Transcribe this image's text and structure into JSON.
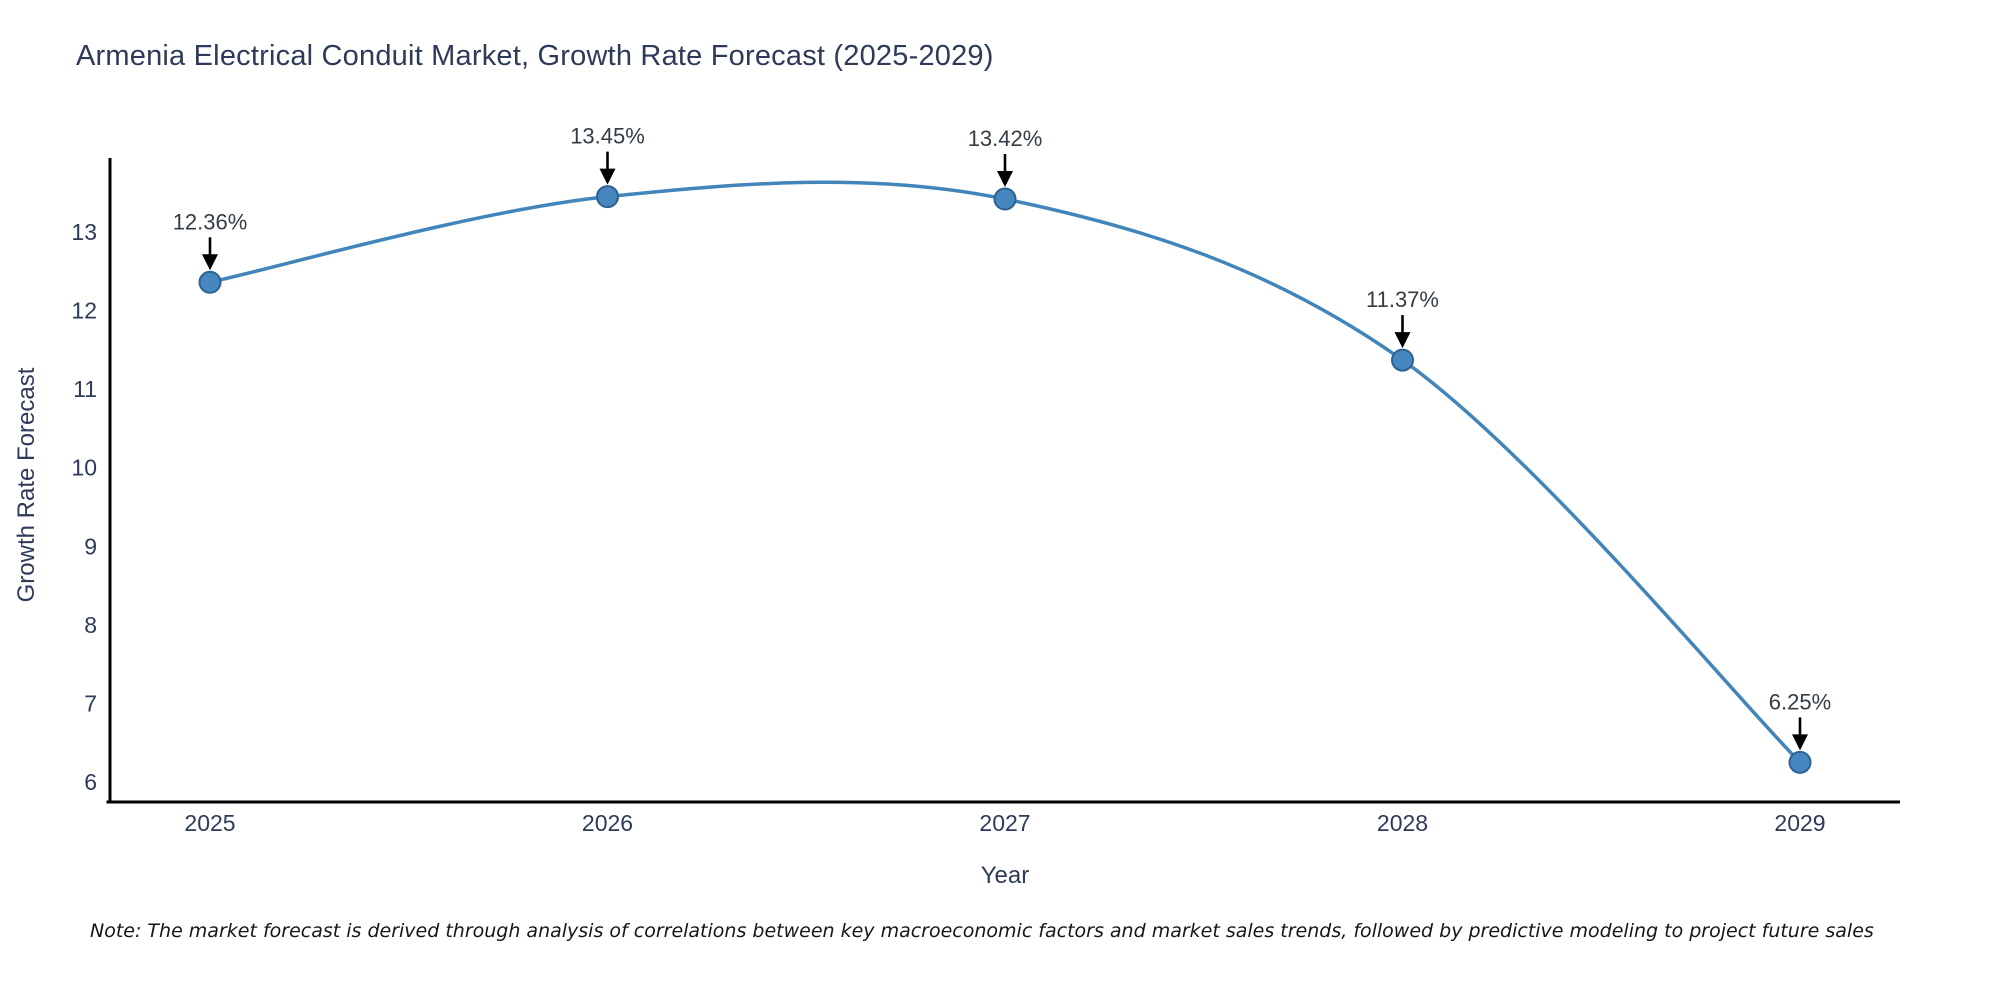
{
  "title": "Armenia Electrical Conduit Market, Growth Rate Forecast (2025-2029)",
  "note": "Note: The market forecast is derived through analysis of correlations between key macroeconomic factors and market sales trends, followed by predictive modeling to project future sales",
  "chart_data": {
    "type": "line",
    "title": "Armenia Electrical Conduit Market, Growth Rate Forecast (2025-2029)",
    "xlabel": "Year",
    "ylabel": "Growth Rate Forecast",
    "categories": [
      "2025",
      "2026",
      "2027",
      "2028",
      "2029"
    ],
    "series": [
      {
        "name": "Growth Rate Forecast",
        "values": [
          12.36,
          13.45,
          13.42,
          11.37,
          6.25
        ]
      }
    ],
    "point_labels": [
      "12.36%",
      "13.45%",
      "13.42%",
      "11.37%",
      "6.25%"
    ],
    "yticks": [
      6,
      7,
      8,
      9,
      10,
      11,
      12,
      13
    ],
    "ylim": [
      5.75,
      13.92
    ],
    "grid": false,
    "legend": "none",
    "line_shape": "spline",
    "colors": {
      "line": "#4285bb",
      "marker_fill": "#4787bf",
      "marker_edge": "#2d618f",
      "axis": "#000000",
      "tick_text": "#2e3a59",
      "annotation_text": "#343c46",
      "arrow": "#000000",
      "background": "#ffffff"
    }
  }
}
